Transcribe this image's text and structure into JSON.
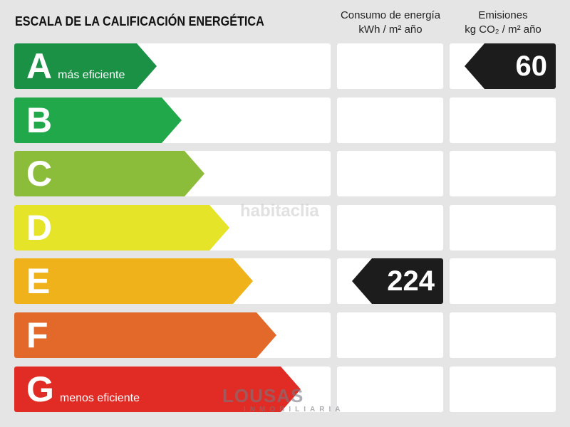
{
  "title": "ESCALA DE LA CALIFICACIÓN ENERGÉTICA",
  "columns": {
    "energy": {
      "line1": "Consumo de energía",
      "unit": "kWh / m² año"
    },
    "emissions": {
      "line1": "Emisiones",
      "unit": "kg CO₂ / m² año"
    }
  },
  "ratings": [
    {
      "letter": "A",
      "label": "más eficiente",
      "color": "#1a9145"
    },
    {
      "letter": "B",
      "label": "",
      "color": "#20a84b"
    },
    {
      "letter": "C",
      "label": "",
      "color": "#8bbd3a"
    },
    {
      "letter": "D",
      "label": "",
      "color": "#e6e428"
    },
    {
      "letter": "E",
      "label": "",
      "color": "#f0b21a"
    },
    {
      "letter": "F",
      "label": "",
      "color": "#e2692a"
    },
    {
      "letter": "G",
      "label": "menos eficiente",
      "color": "#e12b25"
    }
  ],
  "energy_value": {
    "rating": "E",
    "value": "224"
  },
  "emissions_value": {
    "rating": "A",
    "value": "60"
  },
  "watermarks": {
    "site": "habitaclia",
    "agency": "LOUSAS",
    "agency_sub": "INMOBILIARIA"
  }
}
